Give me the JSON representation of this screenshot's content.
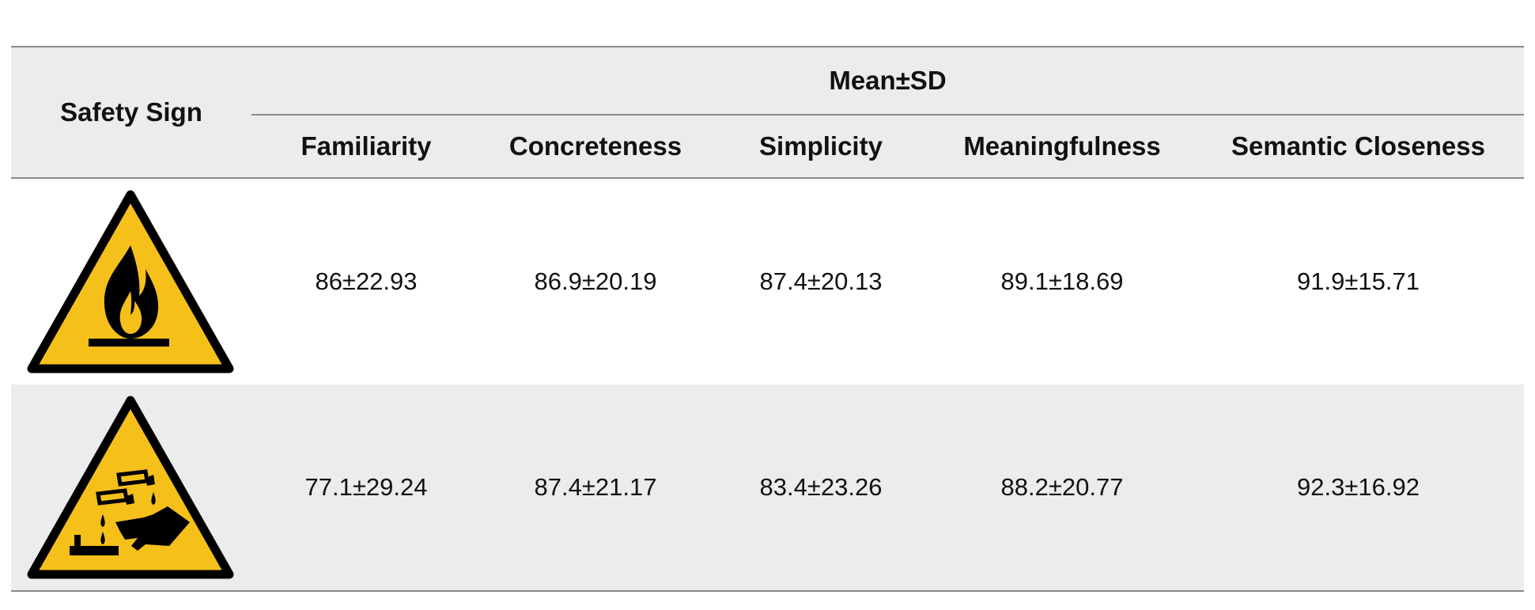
{
  "header": {
    "safety_sign": "Safety Sign",
    "group": "Mean±SD",
    "columns": [
      "Familiarity",
      "Concreteness",
      "Simplicity",
      "Meaningfulness",
      "Semantic Closeness"
    ]
  },
  "rows": [
    {
      "sign_icon": "flammable-warning-icon",
      "values": [
        "86±22.93",
        "86.9±20.19",
        "87.4±20.13",
        "89.1±18.69",
        "91.9±15.71"
      ]
    },
    {
      "sign_icon": "corrosive-warning-icon",
      "values": [
        "77.1±29.24",
        "87.4±21.17",
        "83.4±23.26",
        "88.2±20.77",
        "92.3±16.92"
      ]
    }
  ],
  "colors": {
    "header_bg": "#ebecee",
    "sign_yellow": "#f5c01a",
    "rule": "#8a8a8a"
  }
}
